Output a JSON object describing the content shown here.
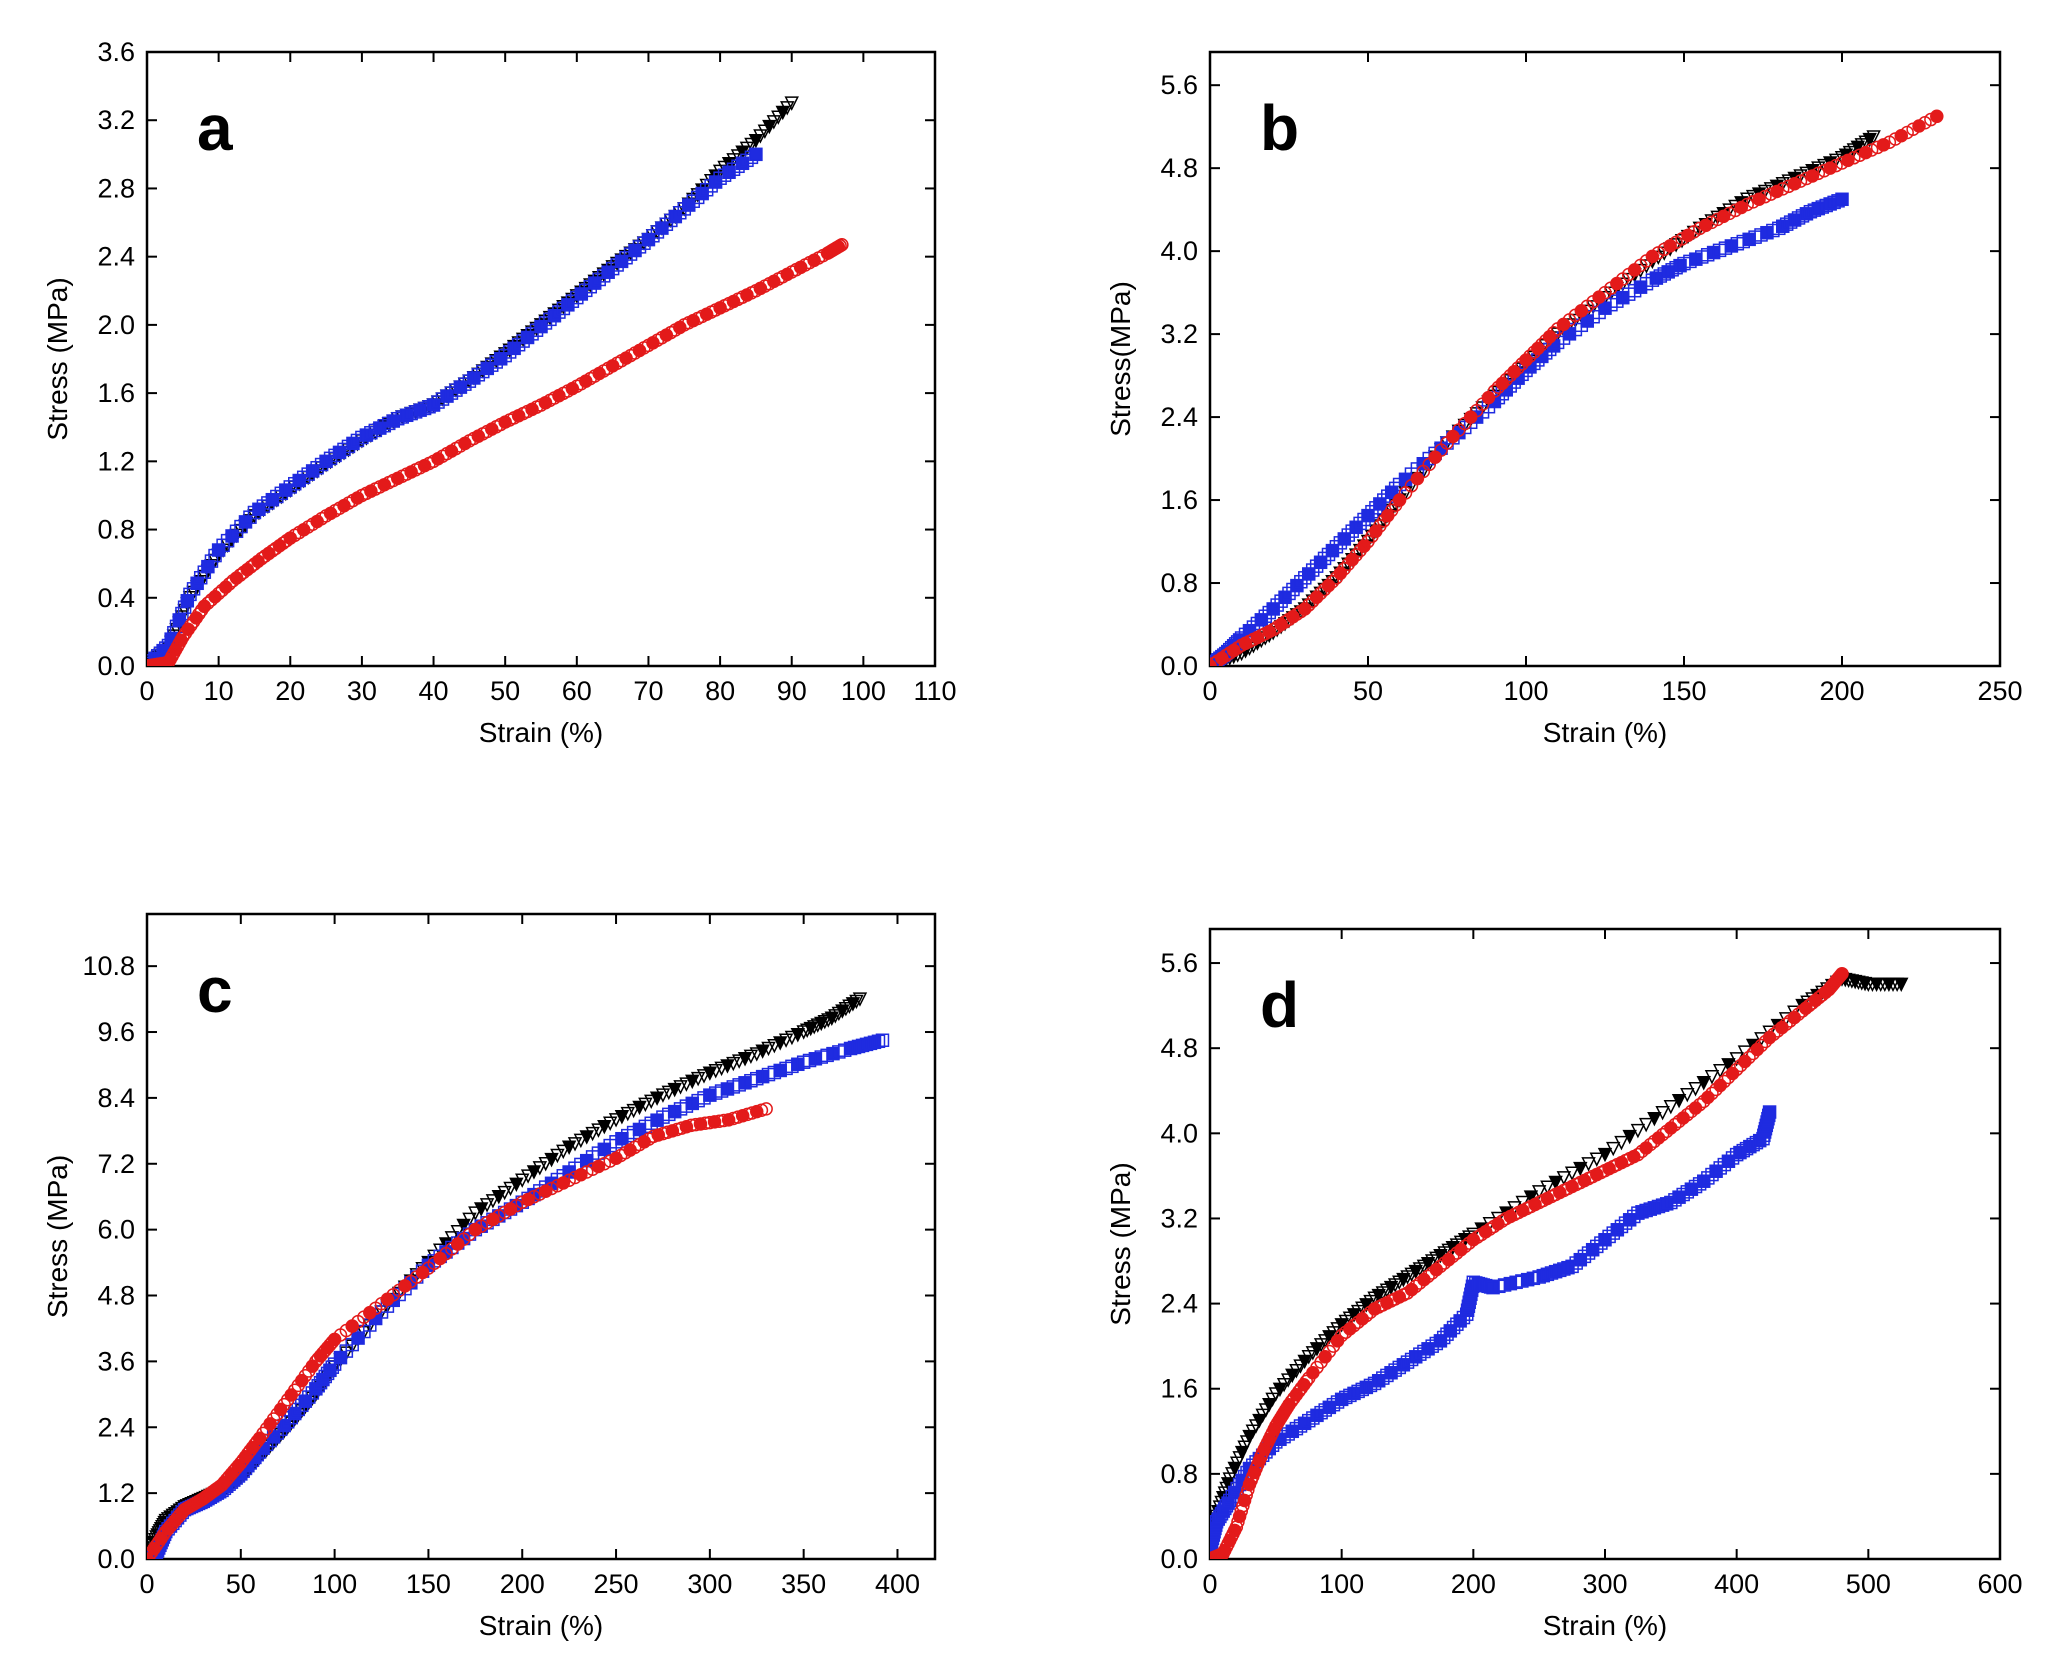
{
  "colors": {
    "black_series": "#000000",
    "blue_series": "#1f2be0",
    "red_series": "#e31a1a"
  },
  "chart_data": [
    {
      "type": "scatter",
      "panel_label": "a",
      "xlabel": "Strain (%)",
      "ylabel": "Stress (MPa)",
      "xlim": [
        0,
        110
      ],
      "ylim": [
        0,
        3.6
      ],
      "xticks": [
        "0",
        "10",
        "20",
        "30",
        "40",
        "50",
        "60",
        "70",
        "80",
        "90",
        "100",
        "110"
      ],
      "yticks": [
        "0.0",
        "0.4",
        "0.8",
        "1.2",
        "1.6",
        "2.0",
        "2.4",
        "2.8",
        "3.2",
        "3.6"
      ],
      "series": [
        {
          "name": "black triangles",
          "marker": "triangle-down",
          "x": [
            0,
            3,
            6,
            10,
            15,
            20,
            25,
            30,
            35,
            40,
            45,
            50,
            55,
            60,
            65,
            70,
            75,
            80,
            85,
            90
          ],
          "y": [
            0,
            0.1,
            0.4,
            0.65,
            0.88,
            1.03,
            1.18,
            1.32,
            1.45,
            1.53,
            1.67,
            1.83,
            2.0,
            2.17,
            2.34,
            2.5,
            2.68,
            2.9,
            3.08,
            3.3
          ]
        },
        {
          "name": "blue squares",
          "marker": "square",
          "x": [
            0,
            3,
            6,
            10,
            15,
            20,
            25,
            30,
            35,
            40,
            45,
            50,
            55,
            60,
            65,
            70,
            75,
            80,
            85
          ],
          "y": [
            0,
            0.12,
            0.42,
            0.68,
            0.9,
            1.05,
            1.2,
            1.34,
            1.45,
            1.53,
            1.67,
            1.82,
            1.99,
            2.16,
            2.33,
            2.5,
            2.68,
            2.86,
            3.0
          ]
        },
        {
          "name": "red circles",
          "marker": "circle",
          "x": [
            0,
            3,
            5,
            8,
            12,
            16,
            20,
            25,
            30,
            35,
            40,
            45,
            50,
            55,
            60,
            65,
            70,
            75,
            80,
            85,
            90,
            95,
            97
          ],
          "y": [
            0,
            0.02,
            0.17,
            0.35,
            0.5,
            0.63,
            0.75,
            0.88,
            1.0,
            1.1,
            1.2,
            1.32,
            1.43,
            1.53,
            1.64,
            1.76,
            1.88,
            2.0,
            2.1,
            2.2,
            2.31,
            2.42,
            2.47
          ]
        }
      ]
    },
    {
      "type": "scatter",
      "panel_label": "b",
      "xlabel": "Strain (%)",
      "ylabel": "Stress(MPa)",
      "xlim": [
        0,
        250
      ],
      "ylim": [
        0,
        5.92
      ],
      "xticks": [
        "0",
        "50",
        "100",
        "150",
        "200",
        "250"
      ],
      "yticks": [
        "0.0",
        "0.8",
        "1.6",
        "2.4",
        "3.2",
        "4.0",
        "4.8",
        "5.6"
      ],
      "series": [
        {
          "name": "black triangles",
          "marker": "triangle-down",
          "x": [
            0,
            10,
            20,
            30,
            40,
            50,
            60,
            75,
            90,
            100,
            110,
            125,
            140,
            155,
            170,
            185,
            200,
            210
          ],
          "y": [
            0,
            0.12,
            0.32,
            0.55,
            0.85,
            1.2,
            1.6,
            2.15,
            2.6,
            2.9,
            3.2,
            3.55,
            3.9,
            4.22,
            4.5,
            4.7,
            4.9,
            5.1
          ]
        },
        {
          "name": "blue squares",
          "marker": "square",
          "x": [
            0,
            5,
            10,
            20,
            30,
            40,
            50,
            60,
            75,
            90,
            100,
            110,
            125,
            140,
            150,
            165,
            180,
            190,
            200
          ],
          "y": [
            0,
            0.12,
            0.27,
            0.55,
            0.85,
            1.15,
            1.45,
            1.75,
            2.15,
            2.55,
            2.85,
            3.12,
            3.45,
            3.72,
            3.88,
            4.05,
            4.22,
            4.38,
            4.5
          ]
        },
        {
          "name": "red circles",
          "marker": "circle",
          "x": [
            0,
            10,
            20,
            30,
            40,
            50,
            60,
            75,
            90,
            100,
            110,
            125,
            140,
            155,
            170,
            185,
            200,
            215,
            230
          ],
          "y": [
            0,
            0.2,
            0.35,
            0.55,
            0.85,
            1.2,
            1.6,
            2.15,
            2.65,
            2.95,
            3.25,
            3.6,
            3.95,
            4.22,
            4.45,
            4.65,
            4.85,
            5.05,
            5.3
          ]
        }
      ]
    },
    {
      "type": "scatter",
      "panel_label": "c",
      "xlabel": "Strain (%)",
      "ylabel": "Stress (MPa)",
      "xlim": [
        0,
        420
      ],
      "ylim": [
        0,
        11.75
      ],
      "xticks": [
        "0",
        "50",
        "100",
        "150",
        "200",
        "250",
        "300",
        "350",
        "400"
      ],
      "yticks": [
        "0.0",
        "1.2",
        "2.4",
        "3.6",
        "4.8",
        "6.0",
        "7.2",
        "8.4",
        "9.6",
        "10.8"
      ],
      "series": [
        {
          "name": "black triangles",
          "marker": "triangle-down",
          "x": [
            0,
            5,
            10,
            20,
            30,
            40,
            50,
            60,
            75,
            90,
            100,
            125,
            150,
            175,
            200,
            225,
            250,
            275,
            300,
            325,
            350,
            365,
            380
          ],
          "y": [
            0,
            0.4,
            0.7,
            0.95,
            1.1,
            1.25,
            1.5,
            1.85,
            2.4,
            3.0,
            3.5,
            4.5,
            5.4,
            6.3,
            6.9,
            7.5,
            8.0,
            8.45,
            8.85,
            9.2,
            9.6,
            9.85,
            10.2
          ]
        },
        {
          "name": "blue squares",
          "marker": "square",
          "x": [
            0,
            5,
            10,
            20,
            30,
            40,
            50,
            60,
            75,
            90,
            100,
            125,
            150,
            175,
            200,
            225,
            250,
            275,
            300,
            325,
            350,
            375,
            392
          ],
          "y": [
            0,
            0.1,
            0.5,
            0.9,
            1.05,
            1.25,
            1.55,
            1.95,
            2.5,
            3.1,
            3.55,
            4.5,
            5.35,
            6.0,
            6.5,
            7.05,
            7.6,
            8.05,
            8.45,
            8.75,
            9.05,
            9.3,
            9.45
          ]
        },
        {
          "name": "red circles",
          "marker": "circle",
          "x": [
            0,
            10,
            20,
            30,
            40,
            50,
            60,
            75,
            90,
            100,
            125,
            150,
            175,
            200,
            225,
            250,
            270,
            290,
            310,
            330
          ],
          "y": [
            0,
            0.5,
            0.9,
            1.1,
            1.35,
            1.75,
            2.2,
            2.9,
            3.6,
            4.0,
            4.65,
            5.3,
            6.0,
            6.5,
            6.9,
            7.3,
            7.7,
            7.9,
            8.0,
            8.2
          ]
        }
      ]
    },
    {
      "type": "scatter",
      "panel_label": "d",
      "xlabel": "Strain (%)",
      "ylabel": "Stress (MPa)",
      "xlim": [
        0,
        600
      ],
      "ylim": [
        0,
        5.92
      ],
      "xticks": [
        "0",
        "100",
        "200",
        "300",
        "400",
        "500",
        "600"
      ],
      "yticks": [
        "0.0",
        "0.8",
        "1.6",
        "2.4",
        "3.2",
        "4.0",
        "4.8",
        "5.6"
      ],
      "series": [
        {
          "name": "black triangles",
          "marker": "triangle-down",
          "x": [
            0,
            5,
            15,
            30,
            50,
            75,
            100,
            125,
            150,
            175,
            200,
            250,
            300,
            350,
            400,
            450,
            480,
            500,
            525
          ],
          "y": [
            0.2,
            0.4,
            0.75,
            1.15,
            1.55,
            1.9,
            2.2,
            2.45,
            2.65,
            2.85,
            3.05,
            3.45,
            3.8,
            4.25,
            4.7,
            5.2,
            5.45,
            5.4,
            5.4
          ]
        },
        {
          "name": "blue squares",
          "marker": "square",
          "x": [
            0,
            5,
            15,
            30,
            50,
            75,
            100,
            125,
            150,
            175,
            195,
            200,
            215,
            250,
            275,
            300,
            325,
            350,
            375,
            400,
            420,
            425
          ],
          "y": [
            0.1,
            0.35,
            0.55,
            0.85,
            1.1,
            1.3,
            1.5,
            1.65,
            1.85,
            2.05,
            2.3,
            2.6,
            2.55,
            2.65,
            2.75,
            3.0,
            3.25,
            3.35,
            3.55,
            3.8,
            3.95,
            4.2
          ]
        },
        {
          "name": "red circles",
          "marker": "circle",
          "x": [
            0,
            10,
            20,
            30,
            40,
            50,
            60,
            75,
            100,
            125,
            150,
            175,
            200,
            225,
            250,
            275,
            300,
            325,
            350,
            375,
            400,
            425,
            450,
            470,
            480
          ],
          "y": [
            0,
            0.05,
            0.3,
            0.7,
            1.0,
            1.25,
            1.45,
            1.7,
            2.1,
            2.35,
            2.5,
            2.75,
            3.0,
            3.2,
            3.35,
            3.5,
            3.65,
            3.8,
            4.05,
            4.3,
            4.6,
            4.9,
            5.15,
            5.35,
            5.5
          ]
        }
      ]
    }
  ]
}
